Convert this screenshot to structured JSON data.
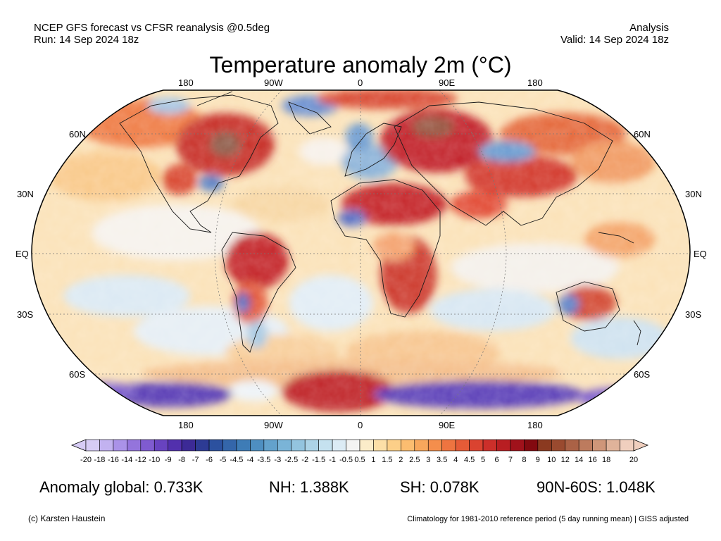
{
  "header": {
    "line1_left": "NCEP GFS forecast vs CFSR reanalysis @0.5deg",
    "line2_left": "Run: 14 Sep 2024 18z",
    "line1_right": "Analysis",
    "line2_right": "Valid: 14 Sep 2024 18z"
  },
  "title": "Temperature anomaly 2m (°C)",
  "map": {
    "lon_labels": [
      "180",
      "90W",
      "0",
      "90E",
      "180"
    ],
    "lat_labels_left": [
      "60N",
      "30N",
      "EQ",
      "30S",
      "60S"
    ],
    "lat_labels_right": [
      "60N",
      "30N",
      "EQ",
      "30S",
      "60S"
    ]
  },
  "colorbar": {
    "ticks": [
      "-20",
      "-18",
      "-16",
      "-14",
      "-12",
      "-10",
      "-9",
      "-8",
      "-7",
      "-6",
      "-5",
      "-4.5",
      "-4",
      "-3.5",
      "-3",
      "-2.5",
      "-2",
      "-1.5",
      "-1",
      "-0.5",
      "0.5",
      "1",
      "1.5",
      "2",
      "2.5",
      "3",
      "3.5",
      "4",
      "4.5",
      "5",
      "6",
      "7",
      "8",
      "9",
      "10",
      "12",
      "14",
      "16",
      "18",
      "20"
    ],
    "colors": [
      "#d6ccf5",
      "#c2b2f0",
      "#aa92e8",
      "#9474dc",
      "#7f5bd0",
      "#6843c0",
      "#5230ad",
      "#3c2a96",
      "#2d3b94",
      "#2c519f",
      "#3466aa",
      "#3e7cb6",
      "#4e8fc1",
      "#63a2cc",
      "#7ab4d7",
      "#93c4df",
      "#acd3e7",
      "#c5e1ef",
      "#dcebf5",
      "#f3f3f3",
      "#fbecc9",
      "#fcdfa7",
      "#fccf88",
      "#fcbd70",
      "#f8a75c",
      "#f48e4c",
      "#ee7440",
      "#e55b37",
      "#da4330",
      "#cc2f2a",
      "#b81e22",
      "#a0121b",
      "#830a10",
      "#8b3a20",
      "#9a4a2f",
      "#ab6246",
      "#bd7b5e",
      "#cf9679",
      "#e0b39a",
      "#f0cfbe"
    ]
  },
  "stats": {
    "global": "Anomaly global: 0.733K",
    "nh": "NH: 1.388K",
    "sh": "SH: 0.078K",
    "arctic": "90N-60S: 1.048K"
  },
  "footer": {
    "left": "(c) Karsten Haustein",
    "right": "Climatology for 1981-2010 reference period (5 day running mean) | GISS adjusted"
  }
}
